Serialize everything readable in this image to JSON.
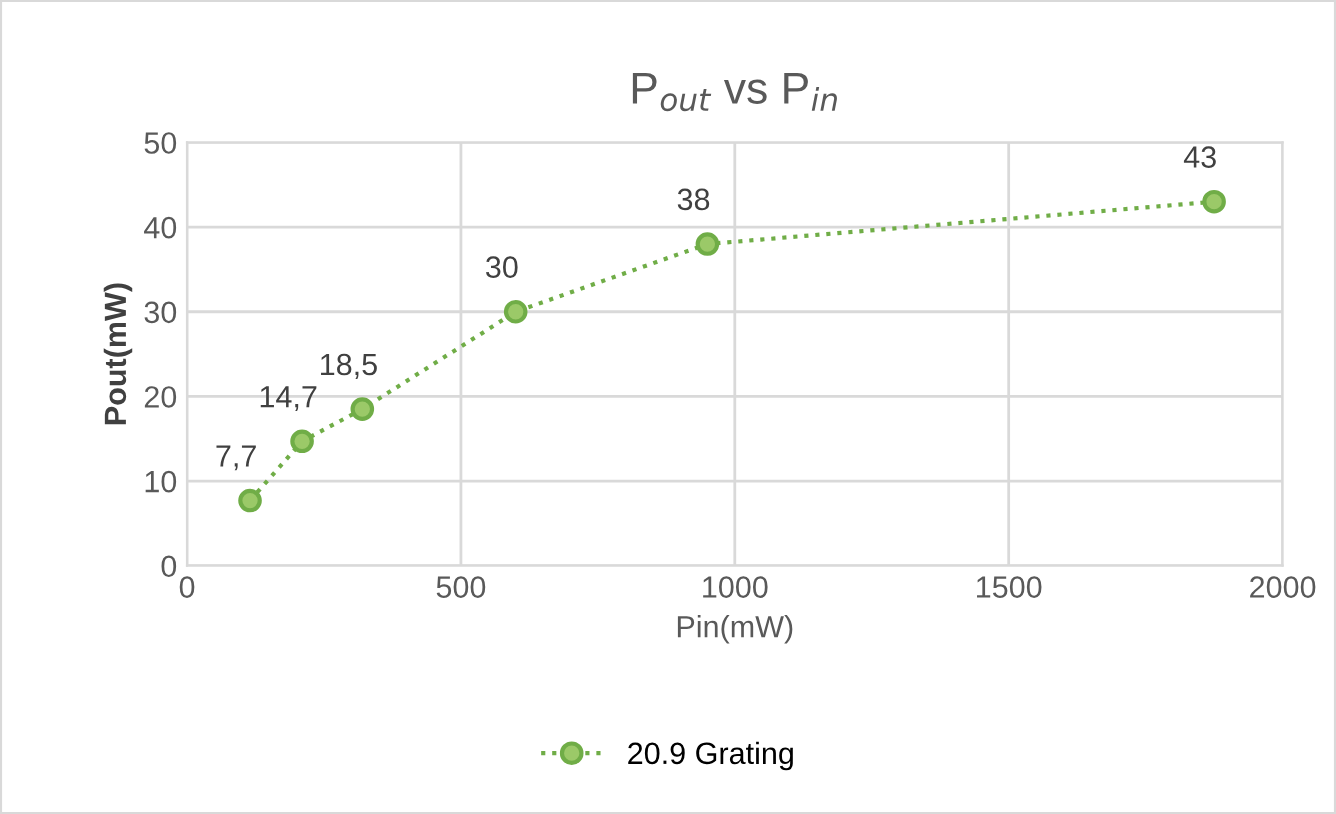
{
  "chart_data": {
    "type": "line",
    "title": "P$_{out}$ vs P$_{in}$",
    "xlabel": "Pin(mW)",
    "ylabel": "Pout(mW)",
    "x": [
      115,
      210,
      320,
      600,
      950,
      1875
    ],
    "series": [
      {
        "name": "20.9 Grating",
        "color": "#70ad47",
        "values": [
          7.7,
          14.7,
          18.5,
          30,
          38,
          43
        ],
        "value_labels": [
          "7,7",
          "14,7",
          "18,5",
          "30",
          "38",
          "43"
        ]
      }
    ],
    "xlim": [
      0,
      2000
    ],
    "xticks": [
      0,
      500,
      1000,
      1500,
      2000
    ],
    "ylim": [
      0,
      50
    ],
    "yticks": [
      0,
      10,
      20,
      30,
      40,
      50
    ],
    "grid": true,
    "legend": "bottom",
    "marker": "circle",
    "line_style": "dotted"
  }
}
